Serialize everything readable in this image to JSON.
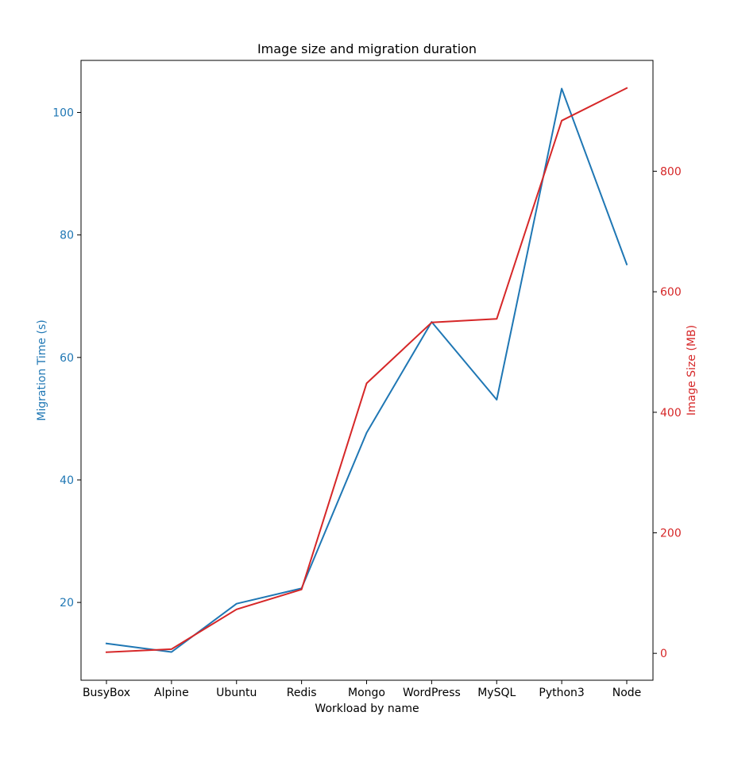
{
  "chart_data": {
    "type": "line",
    "title": "Image size and migration duration",
    "xlabel": "Workload by name",
    "categories": [
      "BusyBox",
      "Alpine",
      "Ubuntu",
      "Redis",
      "Mongo",
      "WordPress",
      "MySQL",
      "Python3",
      "Node"
    ],
    "series": [
      {
        "axis": "left",
        "color": "#1f77b4",
        "values": [
          13.3,
          11.9,
          19.8,
          22.3,
          47.7,
          65.8,
          53.1,
          103.9,
          75.2
        ]
      },
      {
        "axis": "right",
        "color": "#d62728",
        "values": [
          2,
          7,
          73,
          106,
          448,
          549,
          555,
          884,
          938
        ]
      }
    ],
    "y_left": {
      "label": "Migration Time (s)",
      "color": "#1f77b4",
      "lim": [
        7.3,
        108.5
      ],
      "ticks": [
        20,
        40,
        60,
        80,
        100
      ]
    },
    "y_right": {
      "label": "Image Size (MB)",
      "color": "#d62728",
      "lim": [
        -44.6,
        983.9
      ],
      "ticks": [
        0,
        200,
        400,
        600,
        800
      ]
    },
    "grid": false,
    "legend": "none"
  }
}
